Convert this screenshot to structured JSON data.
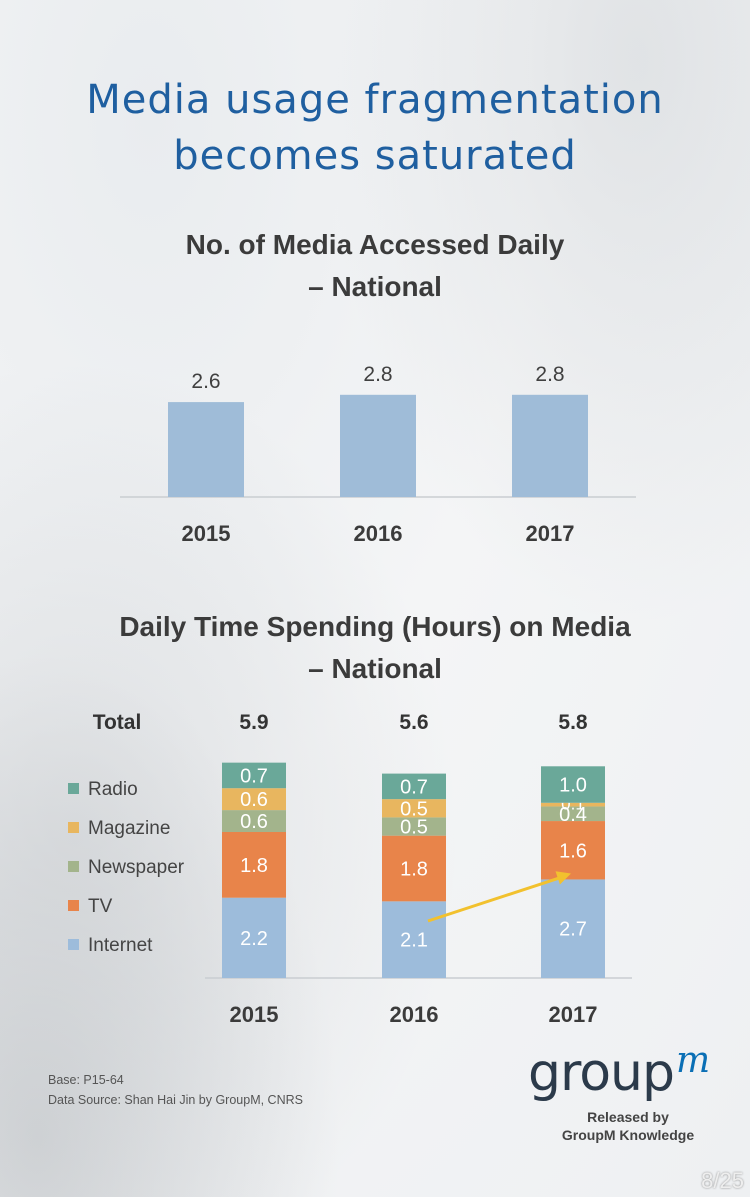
{
  "slide": {
    "title_line1": "Media usage fragmentation",
    "title_line2": "becomes saturated",
    "base_note": "Base: P15-64",
    "source_note": "Data Source: Shan Hai Jin by GroupM, CNRS",
    "logo_text": "group",
    "logo_sup": "m",
    "released_line1": "Released by",
    "released_line2": "GroupM Knowledge",
    "page": "8/25"
  },
  "chart_data": [
    {
      "type": "bar",
      "title_line1": "No. of Media Accessed Daily",
      "title_line2": "– National",
      "categories": [
        "2015",
        "2016",
        "2017"
      ],
      "values": [
        2.6,
        2.8,
        2.8
      ],
      "labels": [
        "2.6",
        "2.8",
        "2.8"
      ],
      "bar_color": "#9fbcd8",
      "grid": false
    },
    {
      "type": "bar",
      "stacked": true,
      "title_line1": "Daily Time Spending (Hours) on Media",
      "title_line2": "– National",
      "categories": [
        "2015",
        "2016",
        "2017"
      ],
      "totals_label": "Total",
      "totals": [
        "5.9",
        "5.6",
        "5.8"
      ],
      "series": [
        {
          "name": "Internet",
          "values": [
            2.2,
            2.1,
            2.7
          ],
          "color": "#9dbcdb"
        },
        {
          "name": "TV",
          "values": [
            1.8,
            1.8,
            1.6
          ],
          "color": "#e8844a"
        },
        {
          "name": "Newspaper",
          "values": [
            0.6,
            0.5,
            0.4
          ],
          "color": "#a3b48c"
        },
        {
          "name": "Magazine",
          "values": [
            0.6,
            0.5,
            0.1
          ],
          "color": "#e8b65f"
        },
        {
          "name": "Radio",
          "values": [
            0.7,
            0.7,
            1.0
          ],
          "color": "#6aa899"
        }
      ],
      "legend": [
        "Radio",
        "Magazine",
        "Newspaper",
        "TV",
        "Internet"
      ],
      "legend_position": "left",
      "annotation": "arrow from 2016 Internet to 2017 TV/Internet boundary",
      "arrow_color": "#f2c12e"
    }
  ]
}
